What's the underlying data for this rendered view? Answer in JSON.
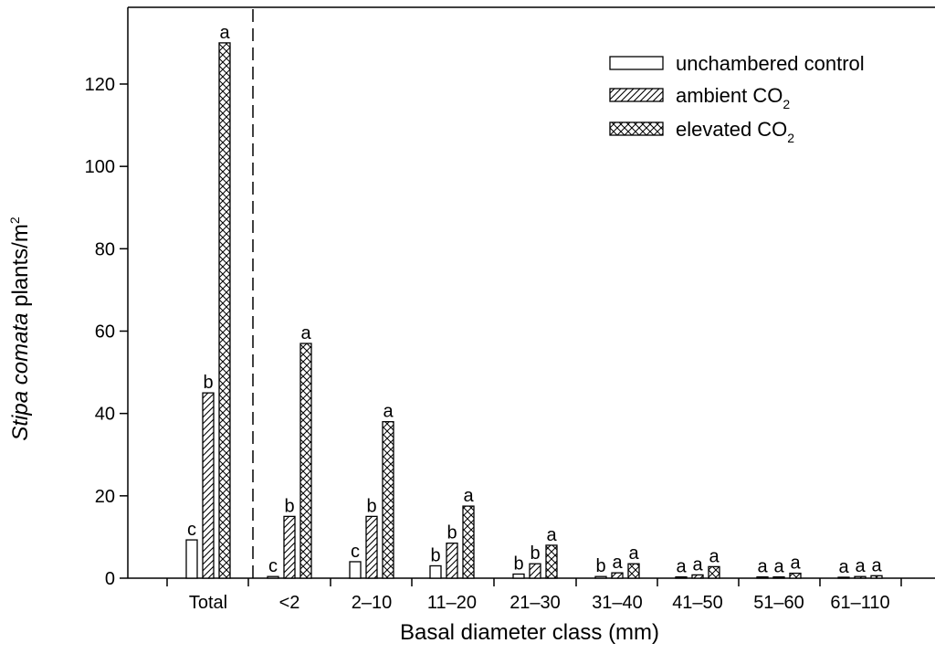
{
  "chart_data": {
    "type": "bar",
    "xlabel": "Basal diameter class (mm)",
    "ylabel_italic": "Stipa comata",
    "ylabel_rest": " plants/m",
    "ylabel_superscript": "2",
    "ylim": [
      0,
      130
    ],
    "yticks": [
      0,
      20,
      40,
      60,
      80,
      100,
      120
    ],
    "categories": [
      "Total",
      "<2",
      "2–10",
      "11–20",
      "21–30",
      "31–40",
      "41–50",
      "51–60",
      "61–110"
    ],
    "series": [
      {
        "name": "unchambered control",
        "name_main": "unchambered control",
        "name_sub": "",
        "pattern": "open",
        "values": [
          9.3,
          0.4,
          4,
          3,
          1,
          0.4,
          0.3,
          0.3,
          0.2
        ],
        "sig": [
          "c",
          "c",
          "c",
          "b",
          "b",
          "b",
          "a",
          "a",
          "a"
        ]
      },
      {
        "name": "ambient CO2",
        "name_main": "ambient CO",
        "name_sub": "2",
        "pattern": "hatch",
        "values": [
          45,
          15,
          15,
          8.5,
          3.5,
          1.3,
          0.8,
          0.3,
          0.4
        ],
        "sig": [
          "b",
          "b",
          "b",
          "b",
          "b",
          "a",
          "a",
          "a",
          "a"
        ]
      },
      {
        "name": "elevated CO2",
        "name_main": "elevated CO",
        "name_sub": "2",
        "pattern": "crosshatch",
        "values": [
          130,
          57,
          38,
          17.5,
          8,
          3.5,
          2.8,
          1.2,
          0.6
        ],
        "sig": [
          "a",
          "a",
          "a",
          "a",
          "a",
          "a",
          "a",
          "a",
          "a"
        ]
      }
    ],
    "separator_after_category": "Total",
    "legend_position": "top-right",
    "grid": false
  }
}
